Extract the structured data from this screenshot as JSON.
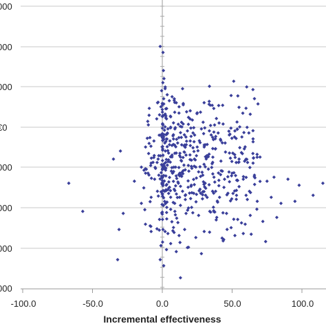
{
  "chart_data": {
    "type": "scatter",
    "xlabel": "Incremental effectiveness",
    "x_ticks": [
      "-100.0",
      "-50.0",
      "0.0",
      "50.0",
      "100.0"
    ],
    "y_tick_labels_visible": [
      "000",
      "000",
      "000",
      "€0",
      "000",
      "000",
      "000",
      "000"
    ],
    "xlim": [
      -100,
      120
    ],
    "ylim": [
      -4,
      3.5
    ],
    "grid": "horizontal",
    "marker_color": "#3a3f9a",
    "series": [
      {
        "points": [
          [
            -1.5,
            3.0
          ],
          [
            0.5,
            2.85
          ],
          [
            0.8,
            2.4
          ],
          [
            1.2,
            2.2
          ],
          [
            0.4,
            2.1
          ],
          [
            2.0,
            1.95
          ],
          [
            -0.5,
            1.9
          ],
          [
            1.0,
            1.7
          ],
          [
            3.5,
            1.8
          ],
          [
            5.0,
            1.65
          ],
          [
            7.0,
            1.75
          ],
          [
            10.0,
            1.6
          ],
          [
            0.2,
            1.55
          ],
          [
            -1.0,
            1.5
          ],
          [
            2.5,
            1.45
          ],
          [
            12.0,
            1.5
          ],
          [
            15.0,
            1.55
          ],
          [
            20.0,
            1.4
          ],
          [
            25.0,
            1.35
          ],
          [
            -2.0,
            1.3
          ],
          [
            1.5,
            1.3
          ],
          [
            3.0,
            1.2
          ],
          [
            6.0,
            1.25
          ],
          [
            8.0,
            1.1
          ],
          [
            -4.0,
            1.2
          ],
          [
            -10.0,
            1.05
          ],
          [
            0.5,
            1.05
          ],
          [
            2.0,
            1.0
          ],
          [
            4.0,
            0.95
          ],
          [
            9.0,
            0.95
          ],
          [
            14.0,
            1.0
          ],
          [
            18.0,
            0.9
          ],
          [
            22.0,
            0.85
          ],
          [
            28.0,
            0.95
          ],
          [
            35.0,
            0.8
          ],
          [
            40.0,
            0.85
          ],
          [
            48.0,
            0.8
          ],
          [
            52.0,
            0.9
          ],
          [
            57.0,
            0.75
          ],
          [
            62.0,
            0.85
          ],
          [
            -1.0,
            0.8
          ],
          [
            1.0,
            0.75
          ],
          [
            3.0,
            0.7
          ],
          [
            5.5,
            0.65
          ],
          [
            8.0,
            0.7
          ],
          [
            11.0,
            0.6
          ],
          [
            16.0,
            0.55
          ],
          [
            20.0,
            0.65
          ],
          [
            25.0,
            0.5
          ],
          [
            30.0,
            0.55
          ],
          [
            38.0,
            0.45
          ],
          [
            45.0,
            0.6
          ],
          [
            -6.0,
            0.65
          ],
          [
            -12.0,
            0.5
          ],
          [
            0.3,
            0.45
          ],
          [
            2.2,
            0.4
          ],
          [
            4.5,
            0.35
          ],
          [
            7.0,
            0.3
          ],
          [
            10.0,
            0.35
          ],
          [
            13.0,
            0.25
          ],
          [
            17.0,
            0.3
          ],
          [
            23.0,
            0.2
          ],
          [
            32.0,
            0.25
          ],
          [
            42.0,
            0.15
          ],
          [
            55.0,
            0.2
          ],
          [
            65.0,
            0.1
          ],
          [
            70.0,
            0.25
          ],
          [
            -3.0,
            0.2
          ],
          [
            -8.0,
            0.1
          ],
          [
            -15.0,
            0.0
          ],
          [
            -30.0,
            0.4
          ],
          [
            -35.0,
            0.2
          ],
          [
            0.6,
            0.0
          ],
          [
            1.8,
            -0.05
          ],
          [
            3.6,
            0.05
          ],
          [
            6.5,
            -0.1
          ],
          [
            9.5,
            0.0
          ],
          [
            12.5,
            -0.15
          ],
          [
            15.5,
            0.05
          ],
          [
            19.0,
            -0.1
          ],
          [
            24.0,
            0.0
          ],
          [
            29.0,
            -0.2
          ],
          [
            33.0,
            -0.05
          ],
          [
            37.0,
            -0.25
          ],
          [
            43.0,
            -0.1
          ],
          [
            50.0,
            -0.15
          ],
          [
            58.0,
            -0.3
          ],
          [
            66.0,
            -0.2
          ],
          [
            75.0,
            -0.35
          ],
          [
            80.0,
            -0.25
          ],
          [
            90.0,
            -0.3
          ],
          [
            98.0,
            -0.45
          ],
          [
            -2.5,
            -0.2
          ],
          [
            -5.5,
            -0.3
          ],
          [
            -12.0,
            -0.15
          ],
          [
            -20.0,
            -0.35
          ],
          [
            0.4,
            -0.4
          ],
          [
            2.8,
            -0.45
          ],
          [
            5.2,
            -0.5
          ],
          [
            8.5,
            -0.55
          ],
          [
            11.5,
            -0.4
          ],
          [
            14.5,
            -0.6
          ],
          [
            18.5,
            -0.5
          ],
          [
            22.5,
            -0.65
          ],
          [
            27.0,
            -0.55
          ],
          [
            31.0,
            -0.7
          ],
          [
            36.0,
            -0.6
          ],
          [
            41.0,
            -0.75
          ],
          [
            47.0,
            -0.65
          ],
          [
            53.0,
            -0.8
          ],
          [
            60.0,
            -0.7
          ],
          [
            68.0,
            -0.85
          ],
          [
            78.0,
            -0.75
          ],
          [
            85.0,
            -0.9
          ],
          [
            95.0,
            -0.85
          ],
          [
            108.0,
            -0.7
          ],
          [
            115.0,
            -0.4
          ],
          [
            -67.0,
            -0.4
          ],
          [
            -3.5,
            -0.6
          ],
          [
            -8.0,
            -0.75
          ],
          [
            -15.0,
            -0.9
          ],
          [
            0.8,
            -0.95
          ],
          [
            3.2,
            -1.0
          ],
          [
            6.0,
            -1.05
          ],
          [
            9.0,
            -1.1
          ],
          [
            13.0,
            -0.95
          ],
          [
            17.0,
            -1.15
          ],
          [
            21.0,
            -1.0
          ],
          [
            26.0,
            -1.2
          ],
          [
            34.0,
            -1.1
          ],
          [
            39.0,
            -1.25
          ],
          [
            46.0,
            -1.15
          ],
          [
            54.0,
            -1.3
          ],
          [
            63.0,
            -1.2
          ],
          [
            72.0,
            -1.35
          ],
          [
            82.0,
            -1.25
          ],
          [
            117.0,
            -1.35
          ],
          [
            -28.0,
            -1.15
          ],
          [
            -57.0,
            -1.1
          ],
          [
            -2.0,
            -1.3
          ],
          [
            0.5,
            -1.55
          ],
          [
            2.0,
            -1.6
          ],
          [
            4.0,
            -1.65
          ],
          [
            8.0,
            -1.5
          ],
          [
            12.0,
            -1.7
          ],
          [
            16.0,
            -1.55
          ],
          [
            24.0,
            -1.75
          ],
          [
            30.0,
            -1.6
          ],
          [
            44.0,
            -1.8
          ],
          [
            52.0,
            -1.7
          ],
          [
            58.0,
            -1.65
          ],
          [
            74.0,
            -1.85
          ],
          [
            -8.0,
            -1.6
          ],
          [
            -31.0,
            -1.55
          ],
          [
            -1.0,
            -1.95
          ],
          [
            3.0,
            -2.05
          ],
          [
            6.0,
            -1.9
          ],
          [
            10.0,
            -2.1
          ],
          [
            18.0,
            -2.0
          ],
          [
            28.0,
            -2.15
          ],
          [
            -1.5,
            -2.3
          ],
          [
            1.0,
            -2.45
          ],
          [
            -32.0,
            -2.3
          ],
          [
            13.0,
            -2.75
          ]
        ]
      }
    ]
  }
}
